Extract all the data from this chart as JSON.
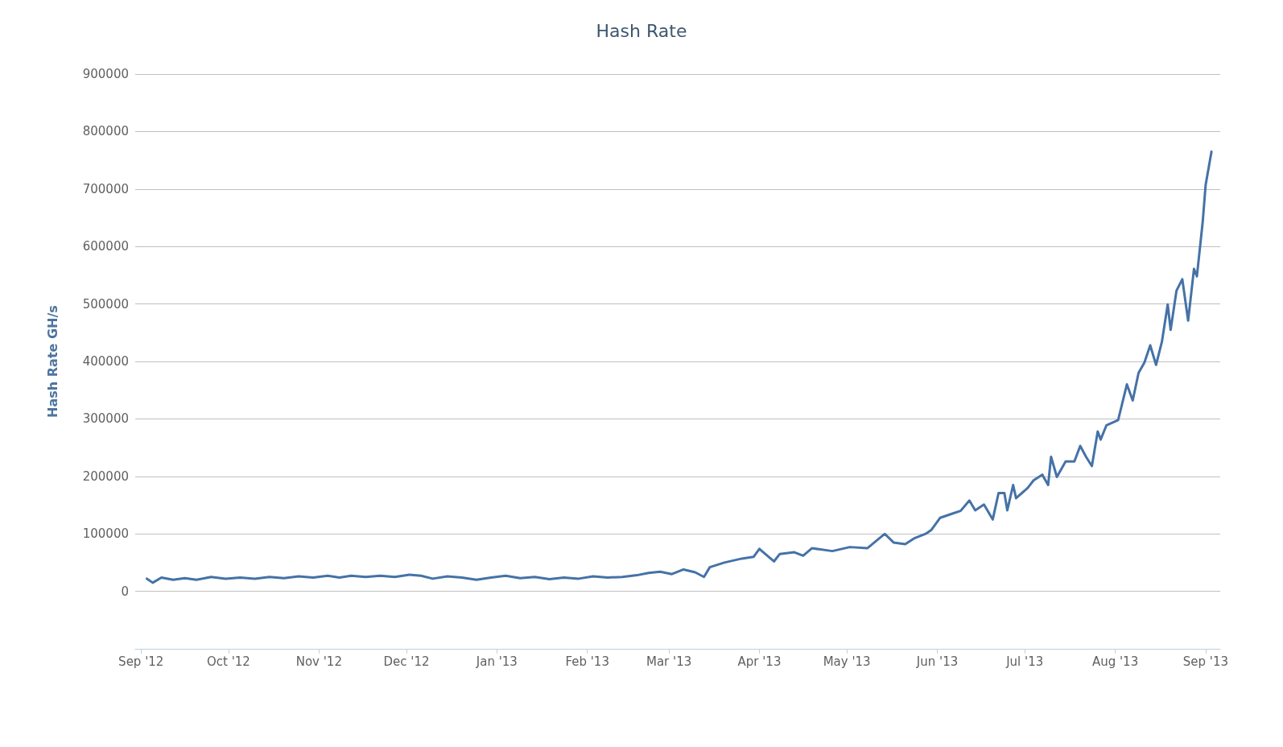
{
  "chart_data": {
    "type": "line",
    "title": "Hash Rate",
    "ylabel": "Hash Rate GH/s",
    "xlim": [
      "2012-08-30",
      "2013-09-06"
    ],
    "xticks": [
      {
        "value": "2012-09-01",
        "label": "Sep '12"
      },
      {
        "value": "2012-10-01",
        "label": "Oct '12"
      },
      {
        "value": "2012-11-01",
        "label": "Nov '12"
      },
      {
        "value": "2012-12-01",
        "label": "Dec '12"
      },
      {
        "value": "2013-01-01",
        "label": "Jan '13"
      },
      {
        "value": "2013-02-01",
        "label": "Feb '13"
      },
      {
        "value": "2013-03-01",
        "label": "Mar '13"
      },
      {
        "value": "2013-04-01",
        "label": "Apr '13"
      },
      {
        "value": "2013-05-01",
        "label": "May '13"
      },
      {
        "value": "2013-06-01",
        "label": "Jun '13"
      },
      {
        "value": "2013-07-01",
        "label": "Jul '13"
      },
      {
        "value": "2013-08-01",
        "label": "Aug '13"
      },
      {
        "value": "2013-09-01",
        "label": "Sep '13"
      }
    ],
    "ylim": [
      -100000,
      900000
    ],
    "yticks": [
      0,
      100000,
      200000,
      300000,
      400000,
      500000,
      600000,
      700000,
      800000,
      900000
    ],
    "grid": "y",
    "marker": "none",
    "line_style": "solid",
    "series": [
      {
        "color": "#4572a7",
        "x": [
          "2012-09-03",
          "2012-09-05",
          "2012-09-08",
          "2012-09-12",
          "2012-09-16",
          "2012-09-20",
          "2012-09-25",
          "2012-09-30",
          "2012-10-05",
          "2012-10-10",
          "2012-10-15",
          "2012-10-20",
          "2012-10-25",
          "2012-10-30",
          "2012-11-04",
          "2012-11-08",
          "2012-11-12",
          "2012-11-17",
          "2012-11-22",
          "2012-11-27",
          "2012-12-02",
          "2012-12-06",
          "2012-12-10",
          "2012-12-15",
          "2012-12-20",
          "2012-12-25",
          "2012-12-30",
          "2013-01-04",
          "2013-01-09",
          "2013-01-14",
          "2013-01-19",
          "2013-01-24",
          "2013-01-29",
          "2013-02-03",
          "2013-02-08",
          "2013-02-13",
          "2013-02-18",
          "2013-02-22",
          "2013-02-26",
          "2013-03-02",
          "2013-03-06",
          "2013-03-10",
          "2013-03-13",
          "2013-03-15",
          "2013-03-20",
          "2013-03-26",
          "2013-03-30",
          "2013-04-01",
          "2013-04-03",
          "2013-04-06",
          "2013-04-08",
          "2013-04-13",
          "2013-04-16",
          "2013-04-19",
          "2013-04-26",
          "2013-05-02",
          "2013-05-08",
          "2013-05-14",
          "2013-05-17",
          "2013-05-21",
          "2013-05-24",
          "2013-05-28",
          "2013-05-30",
          "2013-06-02",
          "2013-06-06",
          "2013-06-09",
          "2013-06-12",
          "2013-06-14",
          "2013-06-17",
          "2013-06-20",
          "2013-06-22",
          "2013-06-24",
          "2013-06-25",
          "2013-06-27",
          "2013-06-28",
          "2013-07-02",
          "2013-07-04",
          "2013-07-07",
          "2013-07-09",
          "2013-07-10",
          "2013-07-12",
          "2013-07-15",
          "2013-07-18",
          "2013-07-20",
          "2013-07-22",
          "2013-07-24",
          "2013-07-26",
          "2013-07-27",
          "2013-07-29",
          "2013-08-02",
          "2013-08-05",
          "2013-08-07",
          "2013-08-09",
          "2013-08-11",
          "2013-08-13",
          "2013-08-15",
          "2013-08-17",
          "2013-08-19",
          "2013-08-20",
          "2013-08-22",
          "2013-08-24",
          "2013-08-26",
          "2013-08-28",
          "2013-08-29",
          "2013-08-31",
          "2013-09-01",
          "2013-09-03"
        ],
        "values": [
          22000,
          15000,
          24000,
          20000,
          23000,
          20000,
          25000,
          22000,
          24000,
          22000,
          25000,
          23000,
          26000,
          24000,
          27000,
          24000,
          27000,
          25000,
          27000,
          25000,
          29000,
          27000,
          22000,
          26000,
          24000,
          20000,
          24000,
          27000,
          23000,
          25000,
          21000,
          24000,
          22000,
          26000,
          24000,
          25000,
          28000,
          32000,
          34000,
          30000,
          38000,
          33000,
          25000,
          42000,
          50000,
          57000,
          60000,
          74000,
          65000,
          52000,
          65000,
          68000,
          62000,
          75000,
          70000,
          77000,
          75000,
          100000,
          85000,
          82000,
          92000,
          100000,
          107000,
          128000,
          135000,
          140000,
          158000,
          141000,
          151000,
          125000,
          171000,
          171000,
          141000,
          185000,
          162000,
          180000,
          193000,
          203000,
          185000,
          234000,
          199000,
          226000,
          226000,
          253000,
          234000,
          218000,
          278000,
          264000,
          289000,
          298000,
          360000,
          332000,
          380000,
          398000,
          428000,
          394000,
          434000,
          499000,
          455000,
          523000,
          543000,
          471000,
          561000,
          548000,
          643000,
          707000,
          765000
        ]
      }
    ]
  }
}
